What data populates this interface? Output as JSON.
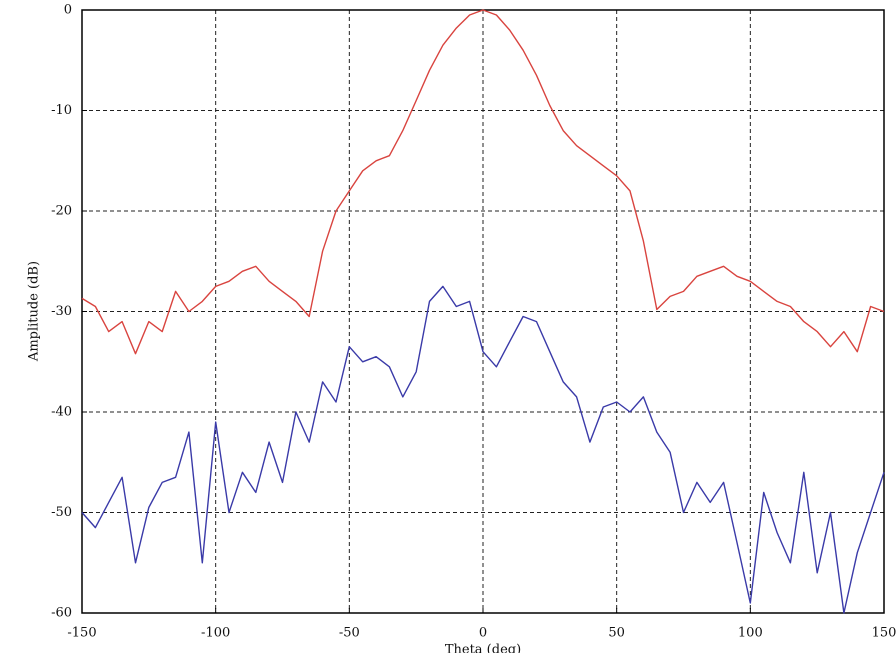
{
  "chart_data": {
    "type": "line",
    "xlabel": "Theta (deg)",
    "ylabel": "Amplitude (dB)",
    "x": [
      -150,
      -145,
      -140,
      -135,
      -130,
      -125,
      -120,
      -115,
      -110,
      -105,
      -100,
      -95,
      -90,
      -85,
      -80,
      -75,
      -70,
      -65,
      -60,
      -55,
      -50,
      -45,
      -40,
      -35,
      -30,
      -25,
      -20,
      -15,
      -10,
      -5,
      0,
      5,
      10,
      15,
      20,
      25,
      30,
      35,
      40,
      45,
      50,
      55,
      60,
      65,
      70,
      75,
      80,
      85,
      90,
      95,
      100,
      105,
      110,
      115,
      120,
      125,
      130,
      135,
      140,
      145,
      150
    ],
    "series": [
      {
        "color": "#d9443f",
        "values": [
          -28.7,
          -29.5,
          -32,
          -31,
          -34.2,
          -31,
          -32,
          -28,
          -30,
          -29,
          -27.5,
          -27,
          -26,
          -25.5,
          -27,
          -28,
          -29,
          -30.5,
          -24,
          -20,
          -18,
          -16,
          -15,
          -14.5,
          -12,
          -9,
          -6,
          -3.5,
          -1.8,
          -0.5,
          0,
          -0.5,
          -2,
          -4,
          -6.5,
          -9.5,
          -12,
          -13.5,
          -14.5,
          -15.5,
          -16.5,
          -18,
          -23,
          -29.8,
          -28.5,
          -28,
          -26.5,
          -26,
          -25.5,
          -26.5,
          -27,
          -28,
          -29,
          -29.5,
          -31,
          -32,
          -33.5,
          -32,
          -34,
          -29.5,
          -30
        ]
      },
      {
        "color": "#3a3aa8",
        "values": [
          -50,
          -51.5,
          -49,
          -46.5,
          -55,
          -49.5,
          -47,
          -46.5,
          -42,
          -55,
          -41,
          -50,
          -46,
          -48,
          -43,
          -47,
          -40,
          -43,
          -37,
          -39,
          -33.5,
          -35,
          -34.5,
          -35.5,
          -38.5,
          -36,
          -29,
          -27.5,
          -29.5,
          -29,
          -34,
          -35.5,
          -33,
          -30.5,
          -31,
          -34,
          -37,
          -38.5,
          -43,
          -39.5,
          -39,
          -40,
          -38.5,
          -42,
          -44,
          -50,
          -47,
          -49,
          -47,
          -53,
          -59,
          -48,
          -52,
          -55,
          -46,
          -56,
          -50,
          -60,
          -54,
          -50,
          -46
        ]
      }
    ],
    "xlim": [
      -150,
      150
    ],
    "xticks": [
      -150,
      -100,
      -50,
      0,
      50,
      100,
      150
    ],
    "ylim": [
      -60,
      0
    ],
    "yticks": [
      -60,
      -50,
      -40,
      -30,
      -20,
      -10,
      0
    ],
    "grid": true
  }
}
